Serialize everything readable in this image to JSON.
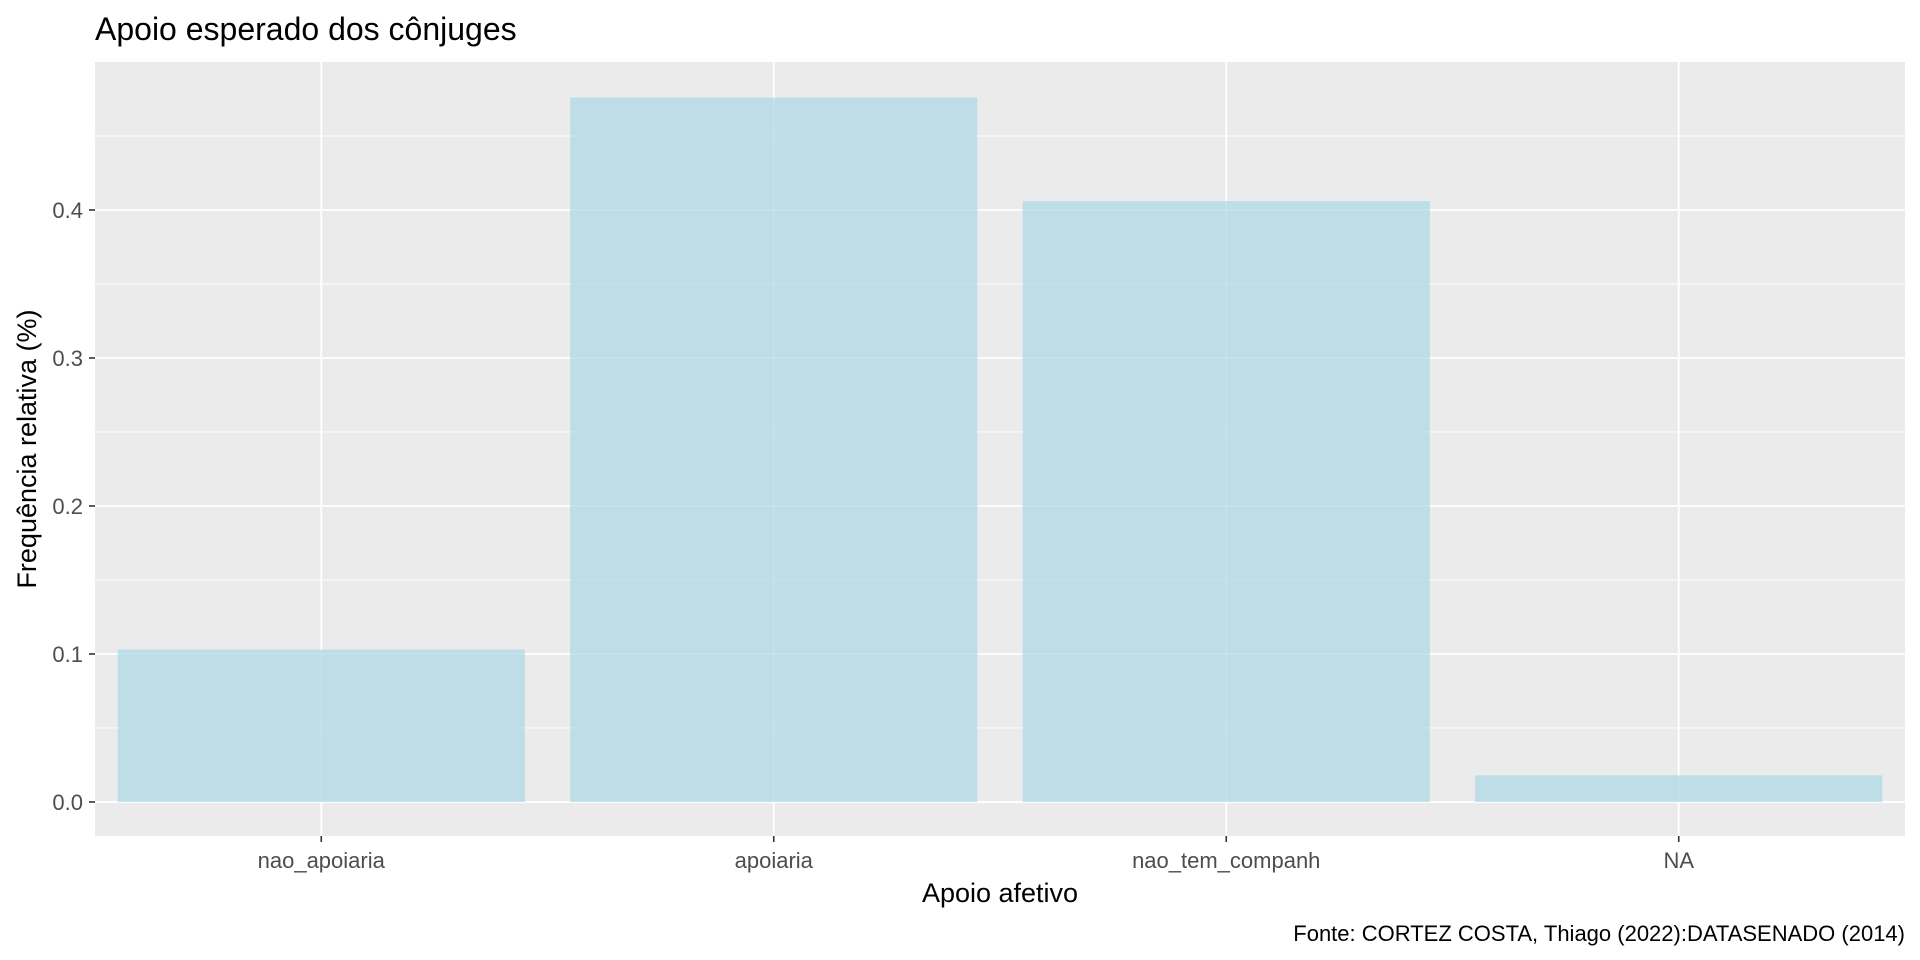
{
  "chart_data": {
    "type": "bar",
    "title": "Apoio esperado dos cônjuges",
    "xlabel": "Apoio afetivo",
    "ylabel": "Frequência relativa (%)",
    "caption": "Fonte: CORTEZ COSTA, Thiago (2022):DATASENADO (2014)",
    "categories": [
      "nao_apoiaria",
      "apoiaria",
      "nao_tem_companh",
      "NA"
    ],
    "values": [
      0.103,
      0.476,
      0.406,
      0.018
    ],
    "ylim": [
      -0.023,
      0.5
    ],
    "yticks": [
      0.0,
      0.1,
      0.2,
      0.3,
      0.4
    ],
    "ytick_labels": [
      "0.0",
      "0.1",
      "0.2",
      "0.3",
      "0.4"
    ],
    "grid": true,
    "legend": "none",
    "colors": {
      "bar_fill": "#add8e6",
      "panel_background": "#ebebeb",
      "grid_line": "#ffffff",
      "tick_label": "#4d4d4d",
      "tick_mark": "#333333"
    }
  }
}
